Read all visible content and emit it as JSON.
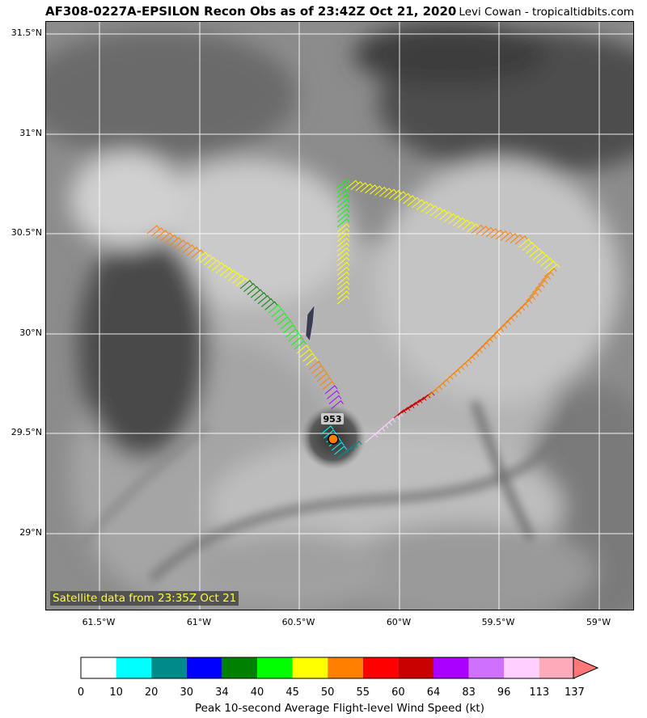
{
  "header": {
    "title": "AF308-0227A-EPSILON Recon Obs as of 23:42Z Oct 21, 2020",
    "credit": "Levi Cowan - tropicaltidbits.com"
  },
  "map": {
    "satellite_label": "Satellite data from 23:35Z Oct 21",
    "lat_labels": [
      "31.5°N",
      "31°N",
      "30.5°N",
      "30°N",
      "29.5°N",
      "29°N"
    ],
    "lon_labels": [
      "61.5°W",
      "61°W",
      "60.5°W",
      "60°W",
      "59.5°W",
      "59°W"
    ],
    "pressure_label": "953",
    "center_marker": "storm-center-icon"
  },
  "colorbar": {
    "title": "Peak 10-second Average Flight-level Wind Speed (kt)",
    "ticks": [
      "0",
      "10",
      "20",
      "30",
      "34",
      "40",
      "45",
      "50",
      "55",
      "60",
      "64",
      "83",
      "96",
      "113",
      "137"
    ],
    "colors": [
      "#ffffff",
      "#00ffff",
      "#008b8b",
      "#0000ff",
      "#008000",
      "#00ff00",
      "#ffff00",
      "#ff8000",
      "#ff0000",
      "#c80000",
      "#aa00ff",
      "#d070ff",
      "#ffd0ff",
      "#ffaabb"
    ]
  }
}
